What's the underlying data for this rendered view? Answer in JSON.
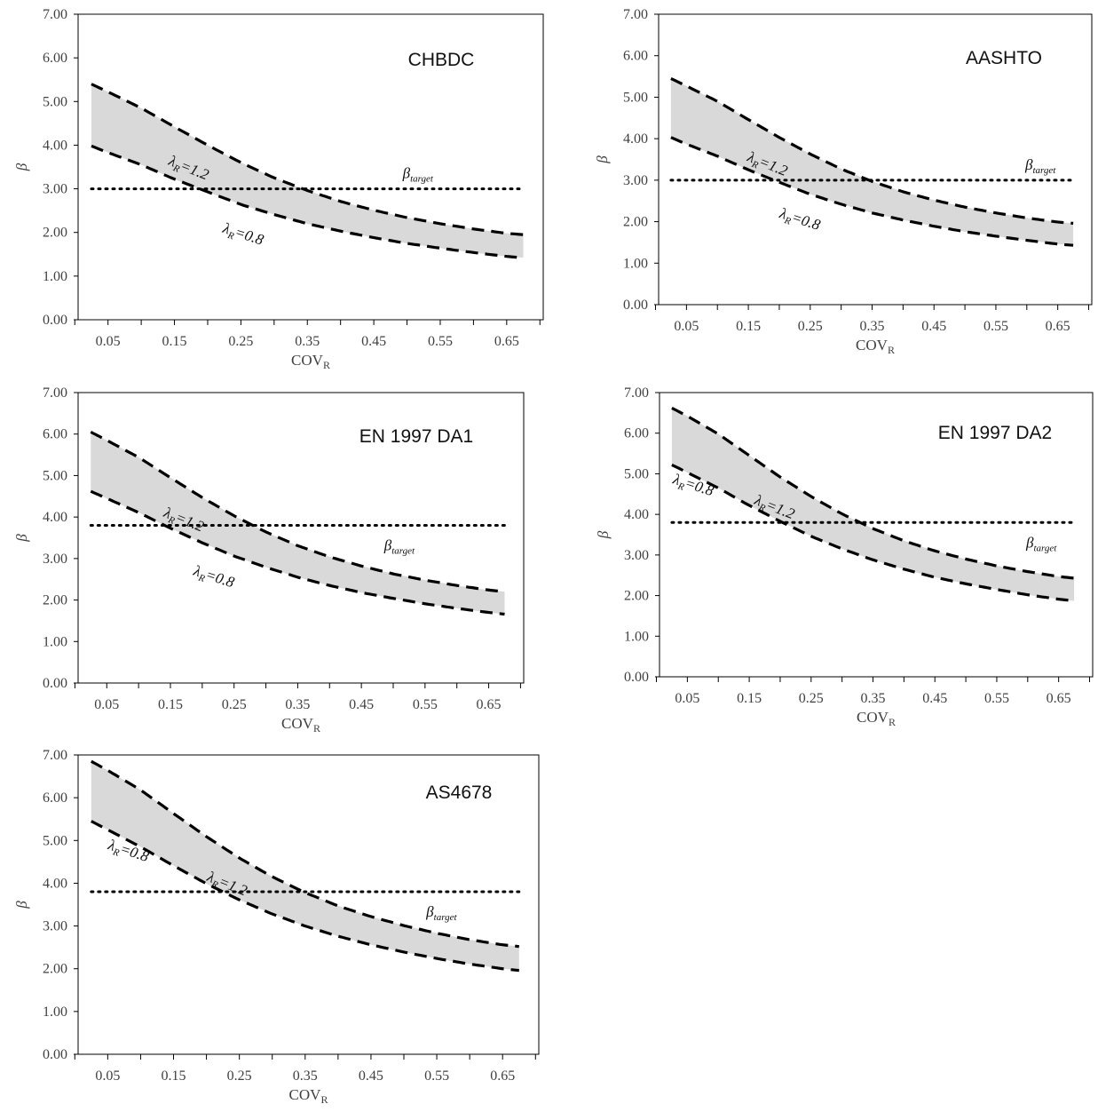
{
  "chart_data": [
    {
      "type": "area",
      "title": "CHBDC",
      "xlabel": "COV",
      "xlabel_sub": "R",
      "ylabel": "β",
      "ylim": [
        0,
        7
      ],
      "yticks": [
        "0.00",
        "1.00",
        "2.00",
        "3.00",
        "4.00",
        "5.00",
        "6.00",
        "7.00"
      ],
      "xticks": [
        "0.05",
        "0.15",
        "0.25",
        "0.35",
        "0.45",
        "0.55",
        "0.65"
      ],
      "x": [
        0.025,
        0.05,
        0.1,
        0.15,
        0.2,
        0.25,
        0.3,
        0.35,
        0.4,
        0.45,
        0.5,
        0.55,
        0.6,
        0.65,
        0.675
      ],
      "series": [
        {
          "name": "λR=1.2",
          "label_main": "λ",
          "label_sub": "R",
          "label_tail": "=1.2",
          "values": [
            5.4,
            5.22,
            4.85,
            4.42,
            4.0,
            3.6,
            3.25,
            2.96,
            2.71,
            2.51,
            2.34,
            2.2,
            2.08,
            1.98,
            1.95
          ]
        },
        {
          "name": "λR=0.8",
          "label_main": "λ",
          "label_sub": "R",
          "label_tail": "=0.8",
          "values": [
            3.98,
            3.83,
            3.55,
            3.22,
            2.93,
            2.64,
            2.41,
            2.2,
            2.03,
            1.88,
            1.75,
            1.64,
            1.54,
            1.45,
            1.42
          ]
        }
      ],
      "target": {
        "label_main": "β",
        "label_sub": "target",
        "value": 3.0
      }
    },
    {
      "type": "area",
      "title": "AASHTO",
      "xlabel": "COV",
      "xlabel_sub": "R",
      "ylabel": "β",
      "ylim": [
        0,
        7
      ],
      "yticks": [
        "0.00",
        "1.00",
        "2.00",
        "3.00",
        "4.00",
        "5.00",
        "6.00",
        "7.00"
      ],
      "xticks": [
        "0.05",
        "0.15",
        "0.25",
        "0.35",
        "0.45",
        "0.55",
        "0.65"
      ],
      "x": [
        0.025,
        0.05,
        0.1,
        0.15,
        0.2,
        0.25,
        0.3,
        0.35,
        0.4,
        0.45,
        0.5,
        0.55,
        0.6,
        0.65,
        0.675
      ],
      "series": [
        {
          "name": "λR=1.2",
          "label_main": "λ",
          "label_sub": "R",
          "label_tail": "=1.2",
          "values": [
            5.45,
            5.27,
            4.9,
            4.46,
            4.03,
            3.63,
            3.27,
            2.97,
            2.72,
            2.52,
            2.35,
            2.21,
            2.09,
            1.99,
            1.96
          ]
        },
        {
          "name": "λR=0.8",
          "label_main": "λ",
          "label_sub": "R",
          "label_tail": "=0.8",
          "values": [
            4.03,
            3.87,
            3.58,
            3.25,
            2.95,
            2.66,
            2.42,
            2.21,
            2.04,
            1.89,
            1.76,
            1.65,
            1.55,
            1.46,
            1.43
          ]
        }
      ],
      "target": {
        "label_main": "β",
        "label_sub": "target",
        "value": 3.0
      }
    },
    {
      "type": "area",
      "title": "EN 1997 DA1",
      "xlabel": "COV",
      "xlabel_sub": "R",
      "ylabel": "β",
      "ylim": [
        0,
        7
      ],
      "yticks": [
        "0.00",
        "1.00",
        "2.00",
        "3.00",
        "4.00",
        "5.00",
        "6.00",
        "7.00"
      ],
      "xticks": [
        "0.05",
        "0.15",
        "0.25",
        "0.35",
        "0.45",
        "0.55",
        "0.65"
      ],
      "x": [
        0.025,
        0.05,
        0.1,
        0.15,
        0.2,
        0.25,
        0.3,
        0.35,
        0.4,
        0.45,
        0.5,
        0.55,
        0.6,
        0.65,
        0.675
      ],
      "series": [
        {
          "name": "λR=1.2",
          "label_main": "λ",
          "label_sub": "R",
          "label_tail": "=1.2",
          "values": [
            6.05,
            5.85,
            5.44,
            4.95,
            4.47,
            4.03,
            3.64,
            3.31,
            3.04,
            2.82,
            2.63,
            2.48,
            2.35,
            2.24,
            2.2
          ]
        },
        {
          "name": "λR=0.8",
          "label_main": "λ",
          "label_sub": "R",
          "label_tail": "=0.8",
          "values": [
            4.62,
            4.45,
            4.11,
            3.73,
            3.38,
            3.06,
            2.79,
            2.55,
            2.35,
            2.18,
            2.04,
            1.91,
            1.8,
            1.7,
            1.66
          ]
        }
      ],
      "target": {
        "label_main": "β",
        "label_sub": "target",
        "value": 3.8
      }
    },
    {
      "type": "area",
      "title": "EN 1997 DA2",
      "xlabel": "COV",
      "xlabel_sub": "R",
      "ylabel": "β",
      "ylim": [
        0,
        7
      ],
      "yticks": [
        "0.00",
        "1.00",
        "2.00",
        "3.00",
        "4.00",
        "5.00",
        "6.00",
        "7.00"
      ],
      "xticks": [
        "0.05",
        "0.15",
        "0.25",
        "0.35",
        "0.45",
        "0.55",
        "0.65"
      ],
      "x": [
        0.025,
        0.05,
        0.1,
        0.15,
        0.2,
        0.25,
        0.3,
        0.35,
        0.4,
        0.45,
        0.5,
        0.55,
        0.6,
        0.65,
        0.675
      ],
      "series": [
        {
          "name": "λR=1.2",
          "label_main": "λ",
          "label_sub": "R",
          "label_tail": "=1.2",
          "values": [
            6.62,
            6.42,
            5.98,
            5.45,
            4.92,
            4.44,
            4.01,
            3.65,
            3.35,
            3.1,
            2.9,
            2.73,
            2.59,
            2.47,
            2.43
          ]
        },
        {
          "name": "λR=0.8",
          "label_main": "λ",
          "label_sub": "R",
          "label_tail": "=0.8",
          "values": [
            5.22,
            5.03,
            4.65,
            4.22,
            3.83,
            3.46,
            3.15,
            2.88,
            2.65,
            2.45,
            2.29,
            2.15,
            2.02,
            1.91,
            1.87
          ]
        }
      ],
      "target": {
        "label_main": "β",
        "label_sub": "target",
        "value": 3.8
      }
    },
    {
      "type": "area",
      "title": "AS4678",
      "xlabel": "COV",
      "xlabel_sub": "R",
      "ylabel": "β",
      "ylim": [
        0,
        7
      ],
      "yticks": [
        "0.00",
        "1.00",
        "2.00",
        "3.00",
        "4.00",
        "5.00",
        "6.00",
        "7.00"
      ],
      "xticks": [
        "0.05",
        "0.15",
        "0.25",
        "0.35",
        "0.45",
        "0.55",
        "0.65"
      ],
      "x": [
        0.025,
        0.05,
        0.1,
        0.15,
        0.2,
        0.25,
        0.3,
        0.35,
        0.4,
        0.45,
        0.5,
        0.55,
        0.6,
        0.65,
        0.675
      ],
      "series": [
        {
          "name": "λR=1.2",
          "label_main": "λ",
          "label_sub": "R",
          "label_tail": "=1.2",
          "values": [
            6.85,
            6.64,
            6.18,
            5.63,
            5.09,
            4.59,
            4.15,
            3.78,
            3.47,
            3.22,
            3.01,
            2.83,
            2.68,
            2.56,
            2.52
          ]
        },
        {
          "name": "λR=0.8",
          "label_main": "λ",
          "label_sub": "R",
          "label_tail": "=0.8",
          "values": [
            5.45,
            5.25,
            4.85,
            4.41,
            3.99,
            3.61,
            3.28,
            3.0,
            2.76,
            2.56,
            2.39,
            2.24,
            2.11,
            2.0,
            1.96
          ]
        }
      ],
      "target": {
        "label_main": "β",
        "label_sub": "target",
        "value": 3.8
      }
    }
  ]
}
